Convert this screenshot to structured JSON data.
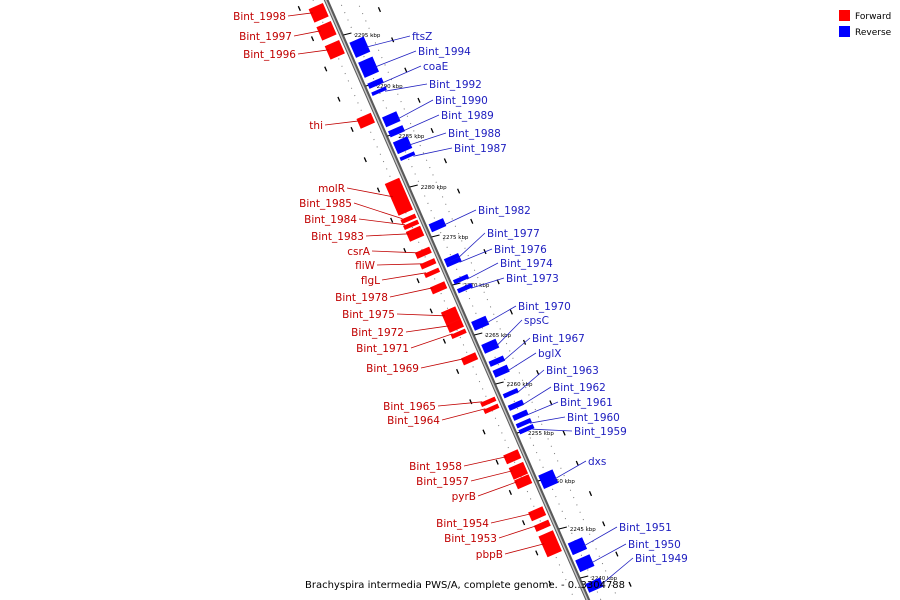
{
  "colors": {
    "forward": "#ff0000",
    "reverse": "#0000ff",
    "axis": "#808080",
    "forward_text": "#c00000",
    "reverse_text": "#2020c0"
  },
  "legend": {
    "forward": "Forward",
    "reverse": "Reverse"
  },
  "caption": "Brachyspira intermedia PWS/A, complete genome. - 0..3304788",
  "ticks": [
    "2295 kbp",
    "2290 kbp",
    "2285 kbp",
    "2280 kbp",
    "2275 kbp",
    "2270 kbp",
    "2265 kbp",
    "2260 kbp",
    "2255 kbp",
    "2250 kbp",
    "2245 kbp",
    "2240 kbp"
  ],
  "forward_genes": [
    "Bint_1998",
    "Bint_1997",
    "Bint_1996",
    "thi",
    "molR",
    "Bint_1985",
    "Bint_1984",
    "Bint_1983",
    "csrA",
    "fliW",
    "flgL",
    "Bint_1978",
    "Bint_1975",
    "Bint_1972",
    "Bint_1971",
    "Bint_1969",
    "Bint_1965",
    "Bint_1964",
    "Bint_1958",
    "Bint_1957",
    "pyrB",
    "Bint_1954",
    "Bint_1953",
    "pbpB"
  ],
  "reverse_genes": [
    "ftsZ",
    "Bint_1994",
    "coaE",
    "Bint_1992",
    "Bint_1990",
    "Bint_1989",
    "Bint_1988",
    "Bint_1987",
    "Bint_1982",
    "Bint_1977",
    "Bint_1976",
    "Bint_1974",
    "Bint_1973",
    "Bint_1970",
    "spsC",
    "Bint_1967",
    "bglX",
    "Bint_1963",
    "Bint_1962",
    "Bint_1961",
    "Bint_1960",
    "Bint_1959",
    "dxs",
    "Bint_1951",
    "Bint_1950",
    "Bint_1949"
  ]
}
